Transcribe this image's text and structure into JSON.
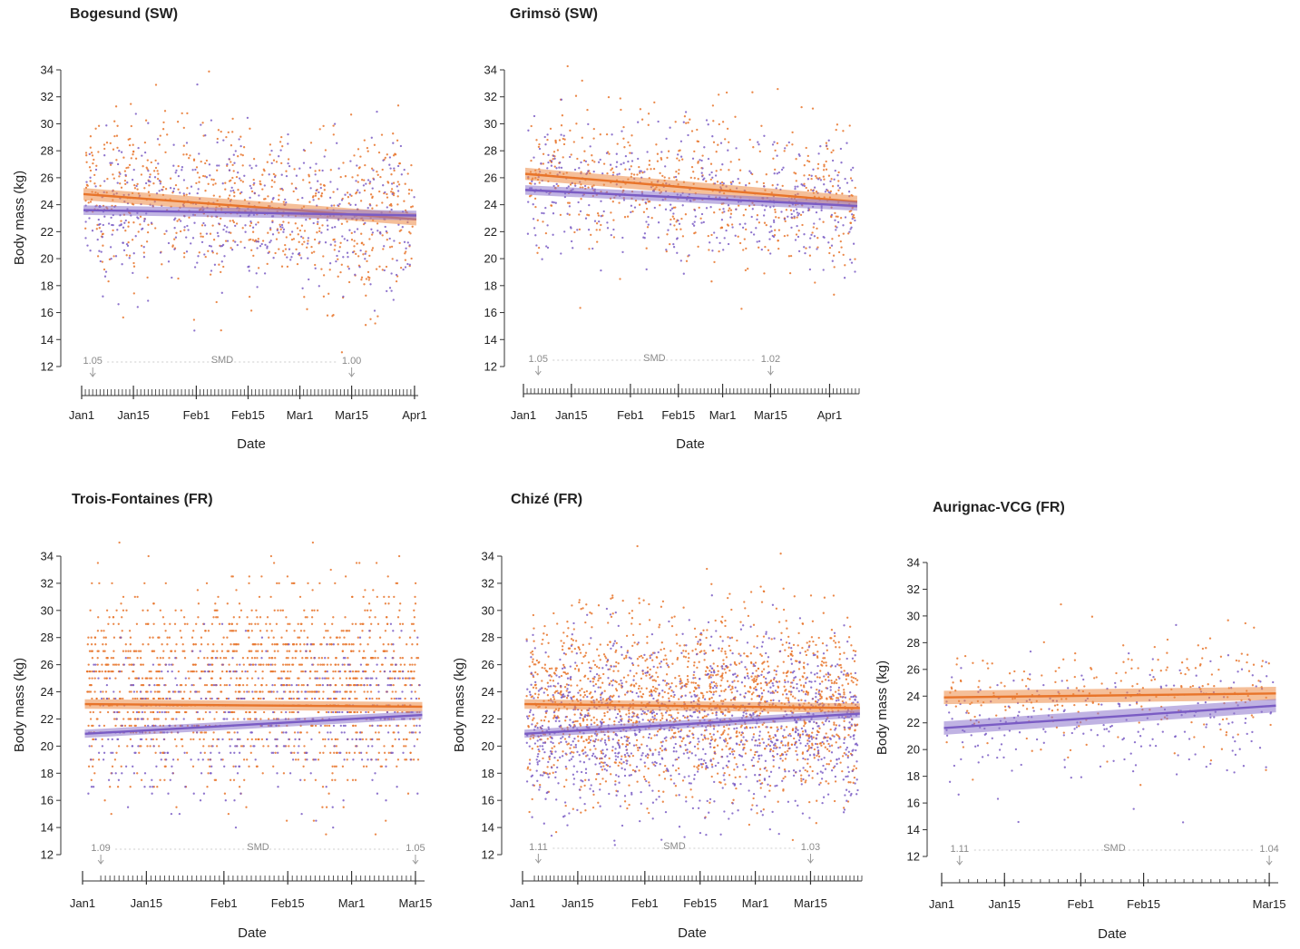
{
  "colors": {
    "female": "#E8742A",
    "male": "#7A5CC4",
    "female_band": "#EC8A45",
    "male_band": "#8D75CC",
    "axis": "#333333",
    "smd": "#9a9a9a"
  },
  "chart_data": [
    {
      "type": "scatter",
      "title": "Bogesund (SW)",
      "xlabel": "Date",
      "ylabel": "Body mass (kg)",
      "xlim": [
        0,
        91
      ],
      "ylim": [
        12,
        34
      ],
      "yticks": [
        12,
        14,
        16,
        18,
        20,
        22,
        24,
        26,
        28,
        30,
        32,
        34
      ],
      "xticks": [
        {
          "label": "Jan1",
          "x": 0
        },
        {
          "label": "Jan15",
          "x": 14
        },
        {
          "label": "Feb1",
          "x": 31
        },
        {
          "label": "Feb15",
          "x": 45
        },
        {
          "label": "Mar1",
          "x": 59
        },
        {
          "label": "Mar15",
          "x": 73
        },
        {
          "label": "Apr1",
          "x": 90
        }
      ],
      "rug": {
        "from": 1,
        "to": 90,
        "step": 1
      },
      "smd": {
        "label": "SMD",
        "start_value": "1.05",
        "end_value": "1.00",
        "start_x": 3,
        "end_x": 73
      },
      "series": [
        {
          "key": "female",
          "fit_start": 24.8,
          "fit_end": 22.9,
          "band": 0.45,
          "center": 24.0,
          "sd": 3.2,
          "n": 700
        },
        {
          "key": "male",
          "fit_start": 23.6,
          "fit_end": 23.2,
          "band": 0.35,
          "center": 23.4,
          "sd": 2.8,
          "n": 500
        }
      ]
    },
    {
      "type": "scatter",
      "title": "Grimsö (SW)",
      "xlabel": "Date",
      "ylabel": "",
      "xlim": [
        0,
        91
      ],
      "ylim": [
        12,
        34
      ],
      "yticks": [
        12,
        14,
        16,
        18,
        20,
        22,
        24,
        26,
        28,
        30,
        32,
        34
      ],
      "xticks": [
        {
          "label": "Jan1",
          "x": 0
        },
        {
          "label": "Jan15",
          "x": 13
        },
        {
          "label": "Feb1",
          "x": 29
        },
        {
          "label": "Feb15",
          "x": 42
        },
        {
          "label": "Mar1",
          "x": 54
        },
        {
          "label": "Mar15",
          "x": 67
        },
        {
          "label": "Apr1",
          "x": 83
        }
      ],
      "rug": {
        "from": 1,
        "to": 91,
        "step": 1
      },
      "smd": {
        "label": "SMD",
        "start_value": "1.05",
        "end_value": "1.02",
        "start_x": 4,
        "end_x": 67
      },
      "series": [
        {
          "key": "female",
          "fit_start": 26.3,
          "fit_end": 24.2,
          "band": 0.45,
          "center": 25.2,
          "sd": 2.7,
          "n": 550
        },
        {
          "key": "male",
          "fit_start": 25.1,
          "fit_end": 23.9,
          "band": 0.35,
          "center": 24.4,
          "sd": 2.4,
          "n": 450
        }
      ]
    },
    {
      "type": "scatter",
      "title": "Trois-Fontaines (FR)",
      "xlabel": "Date",
      "ylabel": "Body mass (kg)",
      "xlim": [
        0,
        75
      ],
      "ylim": [
        12,
        34
      ],
      "yticks": [
        12,
        14,
        16,
        18,
        20,
        22,
        24,
        26,
        28,
        30,
        32,
        34
      ],
      "xticks": [
        {
          "label": "Jan1",
          "x": 0
        },
        {
          "label": "Jan15",
          "x": 14
        },
        {
          "label": "Feb1",
          "x": 31
        },
        {
          "label": "Feb15",
          "x": 45
        },
        {
          "label": "Mar1",
          "x": 59
        },
        {
          "label": "Mar15",
          "x": 73
        }
      ],
      "rug": {
        "from": 4,
        "to": 73,
        "step": 1
      },
      "smd": {
        "label": "SMD",
        "start_value": "1.09",
        "end_value": "1.05",
        "start_x": 4,
        "end_x": 73
      },
      "series": [
        {
          "key": "female",
          "fit_start": 23.1,
          "fit_end": 22.9,
          "band": 0.35,
          "center": 24.5,
          "sd": 3.6,
          "n": 1500,
          "quantize": 0.5
        },
        {
          "key": "male",
          "fit_start": 20.9,
          "fit_end": 22.3,
          "band": 0.3,
          "center": 22.0,
          "sd": 3.2,
          "n": 500,
          "quantize": 0.5
        }
      ]
    },
    {
      "type": "scatter",
      "title": "Chizé (FR)",
      "xlabel": "Date",
      "ylabel": "Body mass (kg)",
      "xlim": [
        0,
        86
      ],
      "ylim": [
        12,
        34
      ],
      "yticks": [
        12,
        14,
        16,
        18,
        20,
        22,
        24,
        26,
        28,
        30,
        32,
        34
      ],
      "xticks": [
        {
          "label": "Jan1",
          "x": 0
        },
        {
          "label": "Jan15",
          "x": 14
        },
        {
          "label": "Feb1",
          "x": 31
        },
        {
          "label": "Feb15",
          "x": 45
        },
        {
          "label": "Mar1",
          "x": 59
        },
        {
          "label": "Mar15",
          "x": 73
        }
      ],
      "rug": {
        "from": 3,
        "to": 86,
        "step": 1
      },
      "smd": {
        "label": "SMD",
        "start_value": "1.11",
        "end_value": "1.03",
        "start_x": 4,
        "end_x": 73
      },
      "series": [
        {
          "key": "female",
          "fit_start": 23.1,
          "fit_end": 22.8,
          "band": 0.35,
          "center": 23.2,
          "sd": 3.4,
          "n": 1600
        },
        {
          "key": "male",
          "fit_start": 20.9,
          "fit_end": 22.4,
          "band": 0.3,
          "center": 21.6,
          "sd": 3.3,
          "n": 1200
        }
      ]
    },
    {
      "type": "scatter",
      "title": "Aurignac-VCG (FR)",
      "xlabel": "Date",
      "ylabel": "Body mass (kg)",
      "xlim": [
        0,
        75
      ],
      "ylim": [
        12,
        34
      ],
      "yticks": [
        12,
        14,
        16,
        18,
        20,
        22,
        24,
        26,
        28,
        30,
        32,
        34
      ],
      "xticks": [
        {
          "label": "Jan1",
          "x": 0
        },
        {
          "label": "Jan15",
          "x": 14
        },
        {
          "label": "Feb1",
          "x": 31
        },
        {
          "label": "Feb15",
          "x": 45
        },
        {
          "label": "Mar15",
          "x": 73
        }
      ],
      "rug": {
        "from": 4,
        "to": 73,
        "step": 2
      },
      "smd": {
        "label": "SMD",
        "start_value": "1.11",
        "end_value": "1.04",
        "start_x": 4,
        "end_x": 73
      },
      "series": [
        {
          "key": "female",
          "fit_start": 23.9,
          "fit_end": 24.2,
          "band": 0.5,
          "center": 24.2,
          "sd": 2.2,
          "n": 230
        },
        {
          "key": "male",
          "fit_start": 21.6,
          "fit_end": 23.3,
          "band": 0.5,
          "center": 22.0,
          "sd": 2.4,
          "n": 230
        }
      ]
    }
  ]
}
